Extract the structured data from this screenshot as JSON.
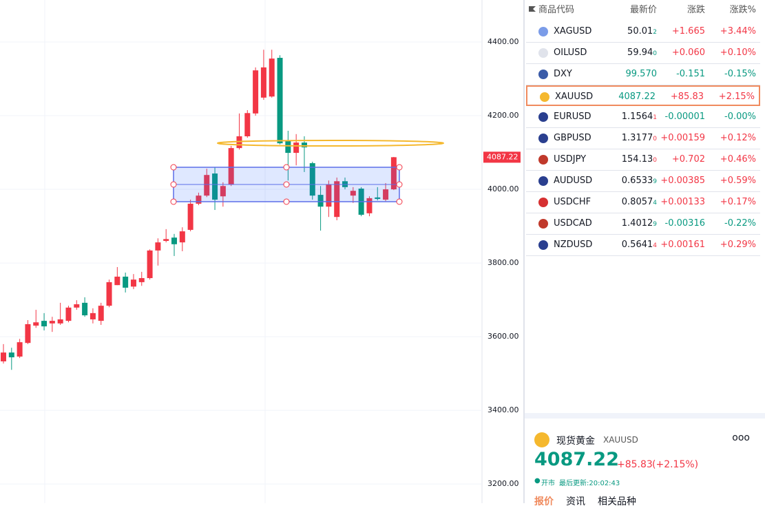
{
  "chart_data": {
    "type": "candlestick",
    "up_color": "#f23645",
    "down_color": "#089981",
    "open": [
      3533,
      3557,
      3546,
      3583,
      3630,
      3643,
      3636,
      3636,
      3643,
      3679,
      3692,
      3647,
      3643,
      3684,
      3740,
      3763,
      3736,
      3748,
      3759,
      3834,
      3860,
      3869,
      3856,
      3890,
      3961,
      3983,
      4043,
      3981,
      4013,
      4112,
      4144,
      4206,
      4249,
      4252,
      4357,
      4131,
      4099,
      4127,
      4071,
      3985,
      3953,
      3925,
      4022,
      3983,
      4002,
      3935,
      3978,
      3972,
      4000
    ],
    "high": [
      3580,
      3570,
      3594,
      3645,
      3673,
      3664,
      3654,
      3692,
      3684,
      3699,
      3707,
      3677,
      3692,
      3755,
      3789,
      3774,
      3770,
      3776,
      3837,
      3867,
      3892,
      3879,
      3897,
      3972,
      3991,
      4056,
      4060,
      4019,
      4118,
      4206,
      4215,
      4331,
      4379,
      4379,
      4364,
      4159,
      4150,
      4144,
      4075,
      4009,
      4024,
      4032,
      4032,
      4006,
      4006,
      3981,
      4006,
      4017,
      4088
    ],
    "low": [
      3527,
      3510,
      3542,
      3580,
      3624,
      3617,
      3613,
      3632,
      3639,
      3673,
      3654,
      3636,
      3632,
      3680,
      3740,
      3720,
      3729,
      3738,
      3755,
      3793,
      3856,
      3819,
      3832,
      3886,
      3957,
      3979,
      3944,
      3953,
      4009,
      4108,
      4140,
      4200,
      4243,
      4249,
      4122,
      4024,
      4065,
      4047,
      3972,
      3888,
      3925,
      3916,
      4000,
      3963,
      3927,
      3927,
      3970,
      3968,
      3998
    ],
    "close": [
      3557,
      3544,
      3585,
      3634,
      3639,
      3628,
      3643,
      3647,
      3679,
      3688,
      3658,
      3664,
      3684,
      3748,
      3763,
      3733,
      3755,
      3759,
      3834,
      3856,
      3865,
      3851,
      3886,
      3961,
      3983,
      4039,
      3972,
      4009,
      4112,
      4144,
      4207,
      4323,
      4331,
      4355,
      4125,
      4099,
      4127,
      4114,
      3983,
      3953,
      4013,
      4022,
      4006,
      3996,
      3931,
      3976,
      3974,
      4000,
      4087.22
    ],
    "ylim": [
      3148,
      4514
    ],
    "yticks": [
      {
        "value": 3200,
        "label": "3200.00"
      },
      {
        "value": 3400,
        "label": "3400.00"
      },
      {
        "value": 3600,
        "label": "3600.00"
      },
      {
        "value": 3800,
        "label": "3800.00"
      },
      {
        "value": 4000,
        "label": "4000.00"
      },
      {
        "value": 4200,
        "label": "4200.00"
      },
      {
        "value": 4400,
        "label": "4400.00"
      }
    ],
    "grid": true,
    "last_price": {
      "value": 4087.22,
      "label": "4087.22"
    }
  },
  "watchlist": {
    "columns": [
      "商品代码",
      "最新价",
      "涨跌",
      "涨跌%"
    ],
    "rows": [
      {
        "symbol": "XAGUSD",
        "price": "50.01",
        "price_tail": "2",
        "price_color": "#131722",
        "tail_color": "#089981",
        "change": "+1.665",
        "change_pct": "+3.44%"
      },
      {
        "symbol": "OILUSD",
        "price": "59.94",
        "price_tail": "0",
        "price_color": "#131722",
        "tail_color": "#089981",
        "change": "+0.060",
        "change_pct": "+0.10%"
      },
      {
        "symbol": "DXY",
        "price": "99.570",
        "price_color": "#089981",
        "change": "-0.151",
        "change_pct": "-0.15%"
      },
      {
        "symbol": "XAUUSD",
        "price": "4087.22",
        "price_color": "#089981",
        "change": "+85.83",
        "change_pct": "+2.15%",
        "selected": true
      },
      {
        "symbol": "EURUSD",
        "price": "1.1564",
        "price_tail": "1",
        "price_color": "#131722",
        "tail_color": "#f23645",
        "change": "-0.00001",
        "change_pct": "-0.00%"
      },
      {
        "symbol": "GBPUSD",
        "price": "1.3177",
        "price_tail": "0",
        "price_color": "#131722",
        "tail_color": "#f23645",
        "change": "+0.00159",
        "change_pct": "+0.12%"
      },
      {
        "symbol": "USDJPY",
        "price": "154.13",
        "price_tail": "0",
        "price_color": "#131722",
        "tail_color": "#f23645",
        "change": "+0.702",
        "change_pct": "+0.46%"
      },
      {
        "symbol": "AUDUSD",
        "price": "0.6533",
        "price_tail": "9",
        "price_color": "#131722",
        "tail_color": "#089981",
        "change": "+0.00385",
        "change_pct": "+0.59%"
      },
      {
        "symbol": "USDCHF",
        "price": "0.8057",
        "price_tail": "4",
        "price_color": "#131722",
        "tail_color": "#089981",
        "change": "+0.00133",
        "change_pct": "+0.17%"
      },
      {
        "symbol": "USDCAD",
        "price": "1.4012",
        "price_tail": "9",
        "price_color": "#131722",
        "tail_color": "#089981",
        "change": "-0.00316",
        "change_pct": "-0.22%"
      },
      {
        "symbol": "NZDUSD",
        "price": "0.5641",
        "price_tail": "4",
        "price_color": "#131722",
        "tail_color": "#f23645",
        "change": "+0.00161",
        "change_pct": "+0.29%"
      }
    ]
  },
  "quote_panel": {
    "name": "现货黄金",
    "symbol": "XAUUSD",
    "menu": "ooo",
    "price": "4087.22",
    "change": "+85.83",
    "change_pct": "(+2.15%)",
    "status": "开市",
    "updated": "最后更新:20:02:43",
    "tabs": [
      "报价",
      "资讯",
      "相关品种"
    ]
  }
}
